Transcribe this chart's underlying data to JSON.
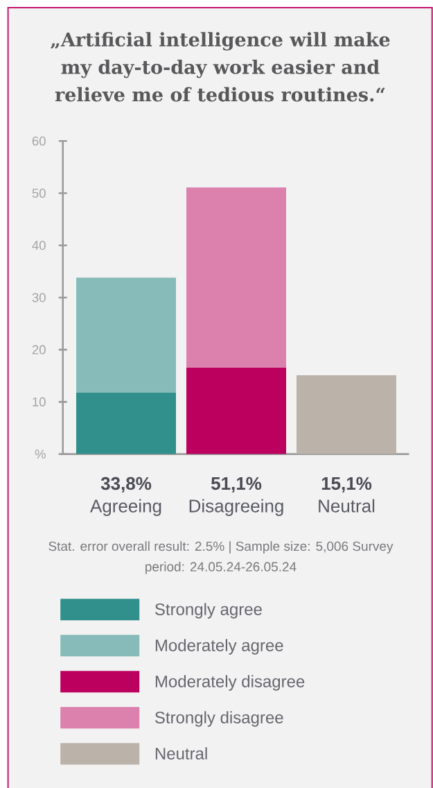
{
  "chart_data": {
    "type": "bar",
    "title": "„Artificial intelligence will make my day-to-day work easier and relieve me of tedious routines.“",
    "categories": [
      "Agreeing",
      "Disagreeing",
      "Neutral"
    ],
    "stacked": true,
    "series": [
      {
        "name": "Strongly agree",
        "color": "#318f8c",
        "values": [
          11.8,
          null,
          null
        ]
      },
      {
        "name": "Moderately agree",
        "color": "#86bbb9",
        "values": [
          22.0,
          null,
          null
        ]
      },
      {
        "name": "Moderately disagree",
        "color": "#bc005e",
        "values": [
          null,
          16.6,
          null
        ]
      },
      {
        "name": "Strongly disagree",
        "color": "#dc80ae",
        "values": [
          null,
          34.5,
          null
        ]
      },
      {
        "name": "Neutral",
        "color": "#bbb2a9",
        "values": [
          null,
          null,
          15.1
        ]
      }
    ],
    "totals": [
      "33,8%",
      "51,1%",
      "15,1%"
    ],
    "ylim": [
      0,
      60
    ],
    "yticks": [
      {
        "value": 0,
        "label": "%"
      },
      10,
      20,
      30,
      40,
      50,
      60
    ],
    "legend": "bottom",
    "annotations": [
      "Stat. error overall result: 2.5% | Sample size: 5,006 Survey period: 24.05.24-26.05.24"
    ]
  }
}
